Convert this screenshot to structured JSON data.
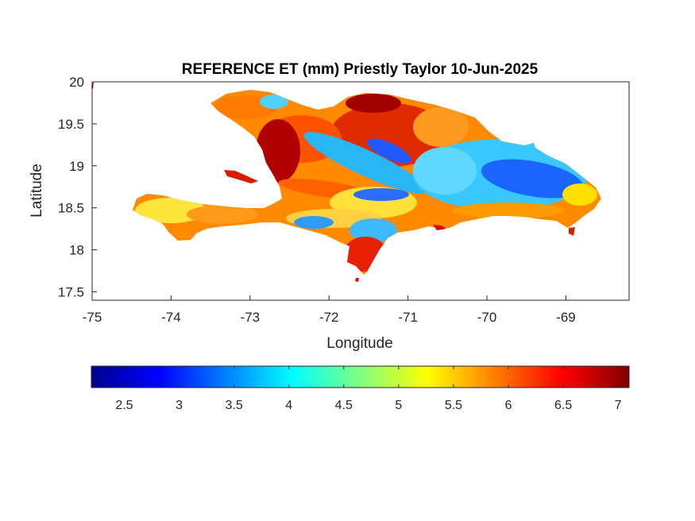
{
  "chart_data": {
    "type": "heatmap",
    "title": "REFERENCE ET (mm) Priestly Taylor 10-Jun-2025",
    "xlabel": "Longitude",
    "ylabel": "Latitude",
    "xlim": [
      -75,
      -68.2
    ],
    "ylim": [
      17.4,
      20
    ],
    "x_ticks": [
      "-75",
      "-74",
      "-73",
      "-72",
      "-71",
      "-70",
      "-69"
    ],
    "y_ticks": [
      "20",
      "19.5",
      "19",
      "18.5",
      "18",
      "17.5"
    ],
    "colormap": "jet",
    "color_range": [
      2.2,
      7.1
    ],
    "colorbar_ticks": [
      "2.5",
      "3",
      "3.5",
      "4",
      "4.5",
      "5",
      "5.5",
      "6",
      "6.5",
      "7"
    ],
    "grid": false
  }
}
